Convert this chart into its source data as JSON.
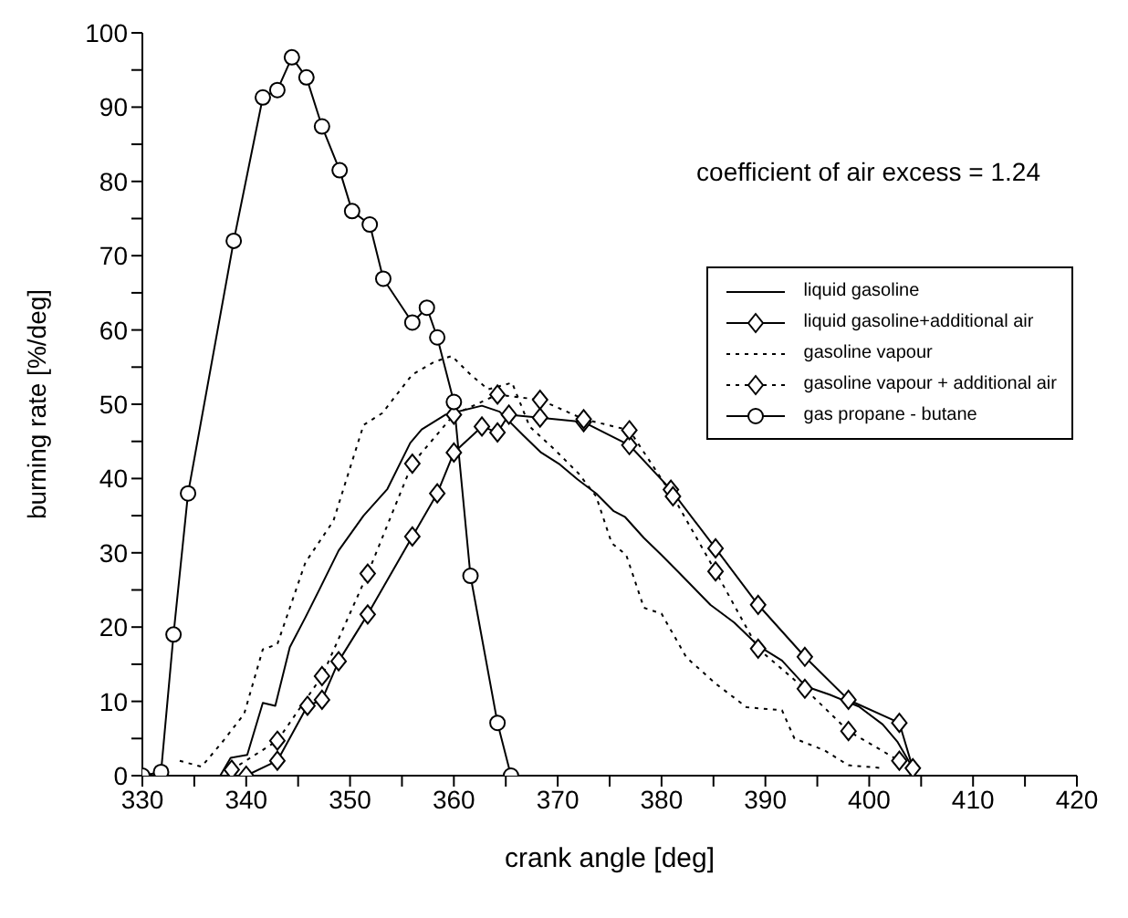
{
  "chart_data": {
    "type": "line",
    "xlabel": "crank angle [deg]",
    "ylabel": "burning rate [%/deg]",
    "annotations": [
      "coefficient of air excess = 1.24"
    ],
    "xlim": [
      330,
      420
    ],
    "xticks": [
      330,
      {
        "value": 335,
        "label": null
      },
      340,
      {
        "value": 345,
        "label": null
      },
      350,
      {
        "value": 355,
        "label": null
      },
      360,
      {
        "value": 365,
        "label": null
      },
      370,
      {
        "value": 375,
        "label": null
      },
      380,
      {
        "value": 385,
        "label": null
      },
      390,
      {
        "value": 395,
        "label": null
      },
      400,
      {
        "value": 405,
        "label": null
      },
      410,
      {
        "value": 415,
        "label": null
      },
      420
    ],
    "ylim": [
      0,
      100
    ],
    "yticks": [
      0,
      {
        "value": 5,
        "label": null
      },
      10,
      {
        "value": 15,
        "label": null
      },
      20,
      {
        "value": 25,
        "label": null
      },
      30,
      {
        "value": 35,
        "label": null
      },
      40,
      {
        "value": 45,
        "label": null
      },
      50,
      {
        "value": 55,
        "label": null
      },
      60,
      {
        "value": 65,
        "label": null
      },
      70,
      {
        "value": 75,
        "label": null
      },
      80,
      {
        "value": 85,
        "label": null
      },
      90,
      {
        "value": 95,
        "label": null
      },
      100
    ],
    "legend": "top right",
    "series": [
      {
        "name": "liquid gasoline",
        "color": "#000000",
        "marker": "none",
        "line_style": "solid",
        "x": [
          337.5,
          338.5,
          340.1,
          341.6,
          342.8,
          344.2,
          345.7,
          347.1,
          348.9,
          351.3,
          353.6,
          355.8,
          356.9,
          359.2,
          362.7,
          364.4,
          366.7,
          368.4,
          370.2,
          371.9,
          373.7,
          375.4,
          376.5,
          378.3,
          380,
          381.7,
          384.7,
          387,
          389.3,
          391.6,
          393.9,
          396.2,
          399,
          401.3,
          402.7,
          404.2
        ],
        "values": [
          0,
          2.4,
          2.8,
          9.8,
          9.4,
          17.3,
          21.3,
          25.2,
          30.3,
          35,
          38.6,
          44.8,
          46.6,
          48.6,
          49.8,
          49,
          45.8,
          43.5,
          41.9,
          39.9,
          38,
          35.6,
          34.8,
          32,
          29.7,
          27.3,
          23,
          20.6,
          17.5,
          15.5,
          12,
          10.9,
          9.3,
          6.9,
          4.6,
          1
        ]
      },
      {
        "name": "liquid gasoline+additional air",
        "color": "#000000",
        "marker": "diamond",
        "line_style": "solid",
        "x": [
          340,
          343,
          345.9,
          347.3,
          348.9,
          351.7,
          356,
          358.4,
          360,
          362.7,
          364.2,
          365.3,
          368.3,
          372.5,
          376.9,
          380.9,
          385.2,
          389.3,
          393.8,
          398,
          402.9,
          404.2
        ],
        "values": [
          0,
          2,
          9.4,
          10.2,
          15.4,
          21.7,
          32.2,
          38,
          43.5,
          47,
          46.2,
          48.6,
          48.2,
          47.6,
          44.5,
          38.5,
          30.6,
          23,
          16,
          10.2,
          7.1,
          1
        ]
      },
      {
        "name": "gasoline vapour",
        "color": "#000000",
        "marker": "none",
        "line_style": "dotted",
        "x": [
          333.6,
          335.7,
          337.8,
          339.8,
          341.6,
          343,
          345.7,
          348.4,
          351.3,
          353.1,
          356,
          358.1,
          359.8,
          361.6,
          363.3,
          365.6,
          367.3,
          369.7,
          372,
          373.7,
          375.2,
          376.6,
          378.3,
          380,
          382.4,
          385.2,
          388.2,
          391.6,
          392.8,
          395.7,
          398,
          401.4
        ],
        "values": [
          2,
          1.2,
          4.7,
          8.3,
          17,
          17.7,
          28.7,
          34.3,
          47.2,
          48.8,
          54,
          55.7,
          56.5,
          54,
          52,
          52.9,
          47,
          43.9,
          40.7,
          37.6,
          31.3,
          29.7,
          22.6,
          21.8,
          15.9,
          12.4,
          9.2,
          8.8,
          5,
          3.4,
          1.4,
          1
        ]
      },
      {
        "name": "gasoline vapour + additional air",
        "color": "#000000",
        "marker": "diamond",
        "line_style": "dotted",
        "x": [
          338.6,
          343,
          347.3,
          351.7,
          356,
          360,
          364.2,
          368.3,
          372.5,
          376.9,
          381.1,
          385.2,
          389.3,
          393.8,
          398,
          402.9
        ],
        "values": [
          0.8,
          4.7,
          13.4,
          27.2,
          42,
          48.6,
          51.3,
          50.6,
          48,
          46.5,
          37.6,
          27.5,
          17.1,
          11.7,
          6,
          2
        ]
      },
      {
        "name": "gas propane - butane",
        "color": "#000000",
        "marker": "circle",
        "line_style": "solid",
        "x": [
          330,
          331.8,
          333,
          334.4,
          338.8,
          341.6,
          343,
          344.4,
          345.8,
          347.3,
          349,
          350.2,
          351.9,
          353.2,
          356,
          357.4,
          358.4,
          360,
          361.6,
          364.2,
          365.5
        ],
        "values": [
          0,
          0.5,
          19,
          38,
          72,
          91.3,
          92.3,
          96.7,
          94,
          87.4,
          81.5,
          76,
          74.2,
          66.9,
          61,
          63,
          59,
          50.3,
          26.9,
          7.1,
          0
        ]
      }
    ]
  }
}
